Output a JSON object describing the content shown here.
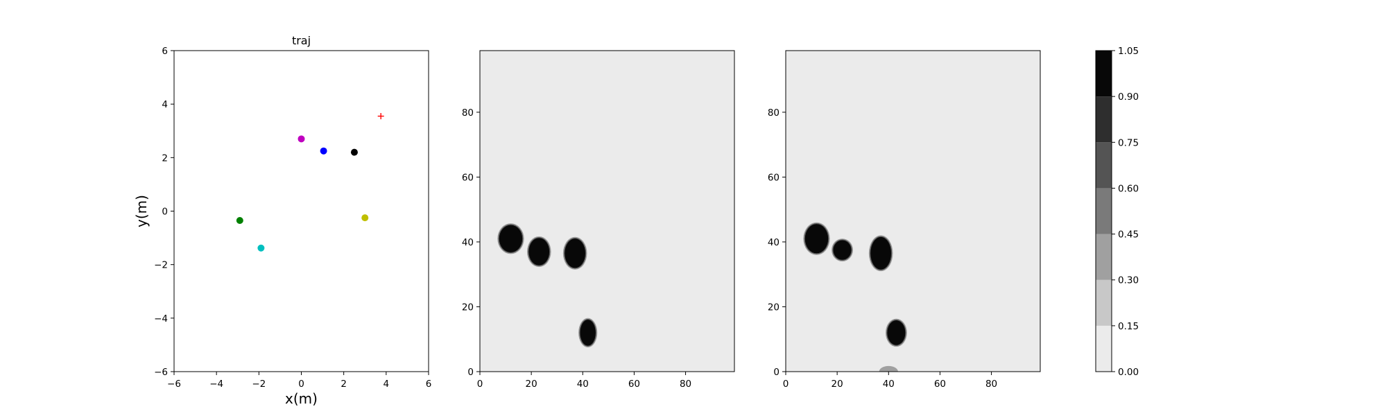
{
  "chart_data": [
    {
      "type": "scatter",
      "title": "traj",
      "xlabel": "x(m)",
      "ylabel": "y(m)",
      "xlim": [
        -6,
        6
      ],
      "ylim": [
        -6,
        6
      ],
      "xticks": [
        -6,
        -4,
        -2,
        0,
        2,
        4,
        6
      ],
      "yticks": [
        -6,
        -4,
        -2,
        0,
        2,
        4,
        6
      ],
      "xtick_labels": [
        "−6",
        "−4",
        "−2",
        "0",
        "2",
        "4",
        "6"
      ],
      "ytick_labels": [
        "−6",
        "−4",
        "−2",
        "0",
        "2",
        "4",
        "6"
      ],
      "grid": false,
      "points": [
        {
          "x": 0.0,
          "y": 2.7,
          "color": "#bf00bf",
          "marker": "circle"
        },
        {
          "x": 1.05,
          "y": 2.25,
          "color": "#0000ff",
          "marker": "circle"
        },
        {
          "x": 2.5,
          "y": 2.2,
          "color": "#000000",
          "marker": "circle"
        },
        {
          "x": -2.9,
          "y": -0.35,
          "color": "#008000",
          "marker": "circle"
        },
        {
          "x": -1.9,
          "y": -1.38,
          "color": "#00bfbf",
          "marker": "circle"
        },
        {
          "x": 3.0,
          "y": -0.25,
          "color": "#bfbf00",
          "marker": "circle"
        },
        {
          "x": 3.75,
          "y": 3.55,
          "color": "#ff0000",
          "marker": "plus"
        }
      ]
    },
    {
      "type": "heatmap",
      "title": "",
      "xlim": [
        0,
        99
      ],
      "ylim": [
        0,
        99
      ],
      "xticks": [
        0,
        20,
        40,
        60,
        80
      ],
      "yticks": [
        0,
        20,
        40,
        60,
        80
      ],
      "background_value": 0.05,
      "blobs": [
        {
          "x": 12,
          "y": 41,
          "rx": 4.5,
          "ry": 4.2,
          "value": 1.0
        },
        {
          "x": 23,
          "y": 37,
          "rx": 4.0,
          "ry": 4.2,
          "value": 1.0
        },
        {
          "x": 37,
          "y": 36.5,
          "rx": 4.0,
          "ry": 4.5,
          "value": 1.0
        },
        {
          "x": 42,
          "y": 12,
          "rx": 3.0,
          "ry": 4.0,
          "value": 1.0
        }
      ]
    },
    {
      "type": "heatmap",
      "title": "",
      "xlim": [
        0,
        99
      ],
      "ylim": [
        0,
        99
      ],
      "xticks": [
        0,
        20,
        40,
        60,
        80
      ],
      "yticks": [
        0,
        20,
        40,
        60,
        80
      ],
      "background_value": 0.05,
      "blobs": [
        {
          "x": 12,
          "y": 41,
          "rx": 4.5,
          "ry": 4.5,
          "value": 1.0
        },
        {
          "x": 22,
          "y": 37.5,
          "rx": 3.5,
          "ry": 3.0,
          "value": 0.95
        },
        {
          "x": 37,
          "y": 36.5,
          "rx": 4.0,
          "ry": 5.0,
          "value": 1.0
        },
        {
          "x": 43,
          "y": 12,
          "rx": 3.5,
          "ry": 3.8,
          "value": 1.0
        },
        {
          "x": 40,
          "y": 0,
          "rx": 3.0,
          "ry": 1.2,
          "value": 0.3
        }
      ]
    },
    {
      "type": "colorbar",
      "levels": [
        0.0,
        0.15,
        0.3,
        0.45,
        0.6,
        0.75,
        0.9,
        1.05
      ],
      "tick_labels": [
        "0.00",
        "0.15",
        "0.30",
        "0.45",
        "0.60",
        "0.75",
        "0.90",
        "1.05"
      ],
      "colors": [
        "#ebebeb",
        "#c8c8c8",
        "#a0a0a0",
        "#7a7a7a",
        "#545454",
        "#2e2e2e",
        "#080808"
      ]
    }
  ]
}
